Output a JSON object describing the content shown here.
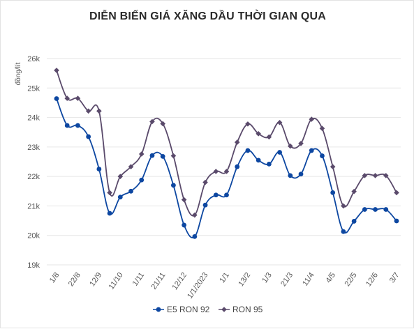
{
  "chart_data": {
    "type": "line",
    "title": "DIỄN BIẾN GIÁ XĂNG DẦU THỜI GIAN QUA",
    "xlabel": "",
    "ylabel": "đồng/lít",
    "ylim": [
      19000,
      26000
    ],
    "yticks": [
      19000,
      20000,
      21000,
      22000,
      23000,
      24000,
      25000,
      26000
    ],
    "ytick_labels": [
      "19k",
      "20k",
      "21k",
      "22k",
      "23k",
      "24k",
      "25k",
      "26k"
    ],
    "grid": "horizontal",
    "legend": "bottom",
    "x_tick_labels": [
      "1/8",
      "22/8",
      "12/9",
      "11/10",
      "1/11",
      "21/11",
      "12/12",
      "1/1/2023",
      "1/1",
      "13/2",
      "1/3",
      "21/3",
      "11/4",
      "4/5",
      "22/5",
      "12/6",
      "3/7"
    ],
    "series": [
      {
        "name": "E5 RON 92",
        "color": "#0d47a1",
        "marker": "circle",
        "values": [
          24640,
          23730,
          23730,
          23350,
          22250,
          20750,
          21300,
          21500,
          21880,
          22710,
          22680,
          21700,
          20350,
          19960,
          21030,
          21370,
          21370,
          22330,
          22880,
          22550,
          22420,
          22820,
          22030,
          22080,
          22880,
          22700,
          21450,
          20130,
          20480,
          20880,
          20880,
          20880,
          20490
        ]
      },
      {
        "name": "RON 95",
        "color": "#5a4a6b",
        "marker": "diamond",
        "values": [
          25600,
          24650,
          24650,
          24220,
          24220,
          21450,
          22000,
          22330,
          22760,
          23860,
          23790,
          22700,
          21210,
          20690,
          21800,
          22170,
          22170,
          23160,
          23780,
          23450,
          23340,
          23830,
          23030,
          23120,
          23940,
          23630,
          22330,
          21000,
          21490,
          22030,
          22030,
          22030,
          21450
        ]
      }
    ]
  }
}
